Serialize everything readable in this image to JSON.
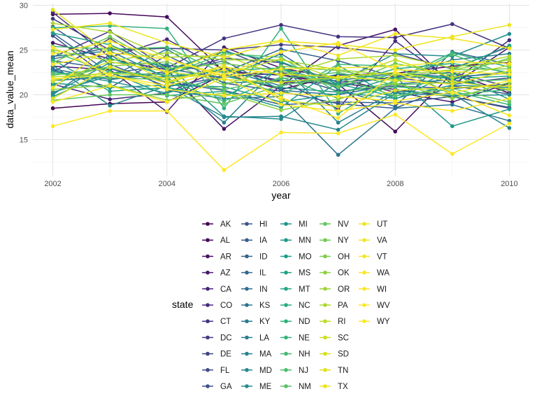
{
  "chart_data": {
    "type": "line",
    "xlabel": "year",
    "ylabel": "data_value_mean",
    "legend_title": "state",
    "legend_position": "bottom",
    "grid": true,
    "x": [
      2002,
      2003,
      2004,
      2005,
      2006,
      2007,
      2008,
      2009,
      2010
    ],
    "xticks": [
      2002,
      2004,
      2006,
      2008,
      2010
    ],
    "yticks": [
      15,
      20,
      25,
      30
    ],
    "xlim": [
      2001.65,
      2010.35
    ],
    "ylim": [
      10.9,
      30.2
    ],
    "series": [
      {
        "name": "AK",
        "color": "#440154",
        "values": [
          18.5,
          19.0,
          19.2,
          22.3,
          20.6,
          22.2,
          22.4,
          23.2,
          23.6
        ]
      },
      {
        "name": "AL",
        "color": "#450a5c",
        "values": [
          29.0,
          29.1,
          28.7,
          22.6,
          22.2,
          21.2,
          15.9,
          22.4,
          20.2
        ]
      },
      {
        "name": "AR",
        "color": "#461365",
        "values": [
          25.8,
          24.0,
          22.8,
          16.2,
          21.0,
          25.5,
          27.3,
          21.1,
          25.3
        ]
      },
      {
        "name": "AZ",
        "color": "#471b6e",
        "values": [
          23.2,
          22.8,
          18.1,
          25.3,
          23.0,
          21.8,
          20.3,
          19.2,
          21.3
        ]
      },
      {
        "name": "CA",
        "color": "#472376",
        "values": [
          21.2,
          19.5,
          20.2,
          23.0,
          21.4,
          21.3,
          20.6,
          19.8,
          18.5
        ]
      },
      {
        "name": "CO",
        "color": "#462b7c",
        "values": [
          29.2,
          24.2,
          26.2,
          22.8,
          21.6,
          18.4,
          26.0,
          21.5,
          26.1
        ]
      },
      {
        "name": "CT",
        "color": "#453281",
        "values": [
          24.2,
          27.1,
          23.0,
          26.3,
          27.8,
          26.5,
          26.4,
          27.9,
          25.2
        ]
      },
      {
        "name": "DC",
        "color": "#433a84",
        "values": [
          28.5,
          25.0,
          25.2,
          25.0,
          25.6,
          25.3,
          24.6,
          22.9,
          25.4
        ]
      },
      {
        "name": "DE",
        "color": "#414286",
        "values": [
          22.5,
          26.3,
          22.3,
          24.1,
          23.6,
          21.4,
          21.9,
          21.2,
          21.9
        ]
      },
      {
        "name": "FL",
        "color": "#3f4988",
        "values": [
          26.6,
          21.8,
          22.6,
          25.0,
          22.5,
          21.0,
          22.1,
          22.5,
          20.9
        ]
      },
      {
        "name": "GA",
        "color": "#3c508b",
        "values": [
          27.6,
          23.4,
          20.9,
          22.0,
          22.4,
          20.4,
          21.0,
          20.7,
          21.2
        ]
      },
      {
        "name": "HI",
        "color": "#39568c",
        "values": [
          22.8,
          20.8,
          24.4,
          21.3,
          20.4,
          19.0,
          18.5,
          21.0,
          20.1
        ]
      },
      {
        "name": "IA",
        "color": "#365d8d",
        "values": [
          23.8,
          22.9,
          21.4,
          20.5,
          18.9,
          19.2,
          19.1,
          19.8,
          18.6
        ]
      },
      {
        "name": "ID",
        "color": "#34638d",
        "values": [
          26.9,
          22.4,
          23.3,
          22.5,
          25.1,
          23.8,
          22.0,
          21.9,
          22.6
        ]
      },
      {
        "name": "IL",
        "color": "#31688e",
        "values": [
          24.0,
          25.3,
          22.9,
          21.9,
          24.6,
          20.6,
          18.7,
          24.8,
          23.4
        ]
      },
      {
        "name": "IN",
        "color": "#2f6e8e",
        "values": [
          22.9,
          21.7,
          22.4,
          23.8,
          20.5,
          20.0,
          21.2,
          21.7,
          20.5
        ]
      },
      {
        "name": "KS",
        "color": "#2c738e",
        "values": [
          20.0,
          24.5,
          20.5,
          19.6,
          19.8,
          13.3,
          18.5,
          18.9,
          17.1
        ]
      },
      {
        "name": "KY",
        "color": "#2a788e",
        "values": [
          21.6,
          22.0,
          25.1,
          21.3,
          21.6,
          21.6,
          22.4,
          22.0,
          22.4
        ]
      },
      {
        "name": "LA",
        "color": "#287d8e",
        "values": [
          24.3,
          24.9,
          21.9,
          22.8,
          21.0,
          22.3,
          21.8,
          23.9,
          24.6
        ]
      },
      {
        "name": "MA",
        "color": "#26828e",
        "values": [
          20.3,
          22.1,
          22.0,
          16.9,
          23.4,
          16.9,
          20.4,
          20.1,
          16.3
        ]
      },
      {
        "name": "MD",
        "color": "#24878e",
        "values": [
          23.3,
          18.8,
          21.0,
          17.5,
          17.6,
          16.1,
          20.2,
          19.9,
          20.0
        ]
      },
      {
        "name": "ME",
        "color": "#228c8d",
        "values": [
          20.1,
          23.6,
          23.4,
          17.6,
          17.3,
          21.4,
          24.6,
          24.3,
          26.8
        ]
      },
      {
        "name": "MI",
        "color": "#20928c",
        "values": [
          22.6,
          21.5,
          20.2,
          22.1,
          20.8,
          20.3,
          19.6,
          21.1,
          20.8
        ]
      },
      {
        "name": "MN",
        "color": "#1f978b",
        "values": [
          21.3,
          20.8,
          21.1,
          20.9,
          19.2,
          20.1,
          22.0,
          16.5,
          18.4
        ]
      },
      {
        "name": "MO",
        "color": "#1f9c89",
        "values": [
          19.8,
          22.6,
          19.9,
          20.4,
          18.6,
          23.3,
          19.5,
          22.4,
          19.5
        ]
      },
      {
        "name": "MS",
        "color": "#21a186",
        "values": [
          26.9,
          25.6,
          22.8,
          24.8,
          23.7,
          21.2,
          19.8,
          22.8,
          25.5
        ]
      },
      {
        "name": "MT",
        "color": "#24a684",
        "values": [
          23.9,
          20.4,
          20.8,
          19.8,
          22.9,
          20.8,
          22.4,
          21.8,
          22.1
        ]
      },
      {
        "name": "NC",
        "color": "#29ab81",
        "values": [
          21.0,
          24.1,
          22.1,
          22.7,
          23.0,
          21.1,
          22.9,
          23.5,
          22.5
        ]
      },
      {
        "name": "ND",
        "color": "#30b07c",
        "values": [
          27.5,
          27.7,
          27.4,
          18.5,
          27.4,
          17.9,
          21.7,
          24.7,
          23.1
        ]
      },
      {
        "name": "NE",
        "color": "#38b478",
        "values": [
          22.2,
          23.0,
          21.6,
          19.3,
          22.0,
          19.6,
          20.9,
          20.4,
          18.9
        ]
      },
      {
        "name": "NH",
        "color": "#42b972",
        "values": [
          25.4,
          25.1,
          25.3,
          22.4,
          20.0,
          23.4,
          23.2,
          20.0,
          20.6
        ]
      },
      {
        "name": "NJ",
        "color": "#4cbe6c",
        "values": [
          24.8,
          22.5,
          22.2,
          24.6,
          24.2,
          20.2,
          21.4,
          24.5,
          22.2
        ]
      },
      {
        "name": "NM",
        "color": "#57c165",
        "values": [
          22.4,
          21.9,
          21.7,
          20.6,
          21.8,
          22.5,
          21.1,
          21.4,
          21.7
        ]
      },
      {
        "name": "NV",
        "color": "#63c65e",
        "values": [
          19.4,
          20.0,
          20.0,
          19.0,
          21.1,
          21.9,
          19.9,
          20.7,
          19.2
        ]
      },
      {
        "name": "NY",
        "color": "#71c955",
        "values": [
          23.6,
          26.5,
          22.9,
          23.5,
          22.7,
          20.9,
          23.5,
          22.2,
          24.1
        ]
      },
      {
        "name": "OH",
        "color": "#7ecd4c",
        "values": [
          21.6,
          23.2,
          23.7,
          21.1,
          23.2,
          22.7,
          21.7,
          22.8,
          22.9
        ]
      },
      {
        "name": "OK",
        "color": "#8ed142",
        "values": [
          20.6,
          21.1,
          19.4,
          20.2,
          18.3,
          19.5,
          21.3,
          19.6,
          21.4
        ]
      },
      {
        "name": "OR",
        "color": "#9dd538",
        "values": [
          25.0,
          23.8,
          24.7,
          23.9,
          23.9,
          22.8,
          22.2,
          22.8,
          23.9
        ]
      },
      {
        "name": "PA",
        "color": "#acd82f",
        "values": [
          28.0,
          27.0,
          24.2,
          24.4,
          22.1,
          24.0,
          24.4,
          23.0,
          24.3
        ]
      },
      {
        "name": "RI",
        "color": "#bcdb27",
        "values": [
          22.0,
          22.4,
          21.9,
          22.3,
          24.0,
          21.7,
          23.9,
          21.9,
          23.3
        ]
      },
      {
        "name": "SC",
        "color": "#cbde21",
        "values": [
          21.5,
          23.7,
          22.6,
          21.7,
          21.4,
          22.0,
          22.5,
          21.5,
          20.6
        ]
      },
      {
        "name": "SD",
        "color": "#d7e01d",
        "values": [
          19.6,
          23.1,
          21.3,
          23.3,
          19.4,
          18.7,
          20.5,
          20.8,
          21.0
        ]
      },
      {
        "name": "TN",
        "color": "#e2e31c",
        "values": [
          29.5,
          24.6,
          21.5,
          23.1,
          22.3,
          22.0,
          21.6,
          21.2,
          22.7
        ]
      },
      {
        "name": "TX",
        "color": "#ece51b",
        "values": [
          27.3,
          28.0,
          25.8,
          24.2,
          26.0,
          25.6,
          25.0,
          26.5,
          27.8
        ]
      },
      {
        "name": "UT",
        "color": "#f0e51d",
        "values": [
          20.8,
          25.5,
          22.4,
          25.0,
          26.1,
          24.4,
          26.8,
          26.3,
          25.2
        ]
      },
      {
        "name": "VA",
        "color": "#f3e621",
        "values": [
          23.4,
          24.7,
          24.0,
          22.0,
          22.9,
          23.0,
          23.2,
          23.7,
          23.5
        ]
      },
      {
        "name": "VT",
        "color": "#f6e724",
        "values": [
          21.8,
          22.2,
          20.6,
          19.9,
          20.2,
          19.8,
          19.3,
          20.3,
          17.7
        ]
      },
      {
        "name": "WA",
        "color": "#f9e725",
        "values": [
          24.6,
          26.0,
          24.0,
          22.2,
          24.8,
          25.8,
          22.8,
          22.6,
          22.3
        ]
      },
      {
        "name": "WI",
        "color": "#fbe724",
        "values": [
          19.2,
          21.0,
          19.2,
          21.9,
          18.9,
          18.2,
          19.1,
          18.2,
          19.6
        ]
      },
      {
        "name": "WV",
        "color": "#fde725",
        "values": [
          16.5,
          18.2,
          18.2,
          11.6,
          15.8,
          15.7,
          17.8,
          13.4,
          16.8
        ]
      },
      {
        "name": "WY",
        "color": "#fde725",
        "values": [
          25.3,
          22.2,
          21.0,
          22.8,
          19.7,
          17.4,
          22.5,
          20.2,
          21.6
        ]
      }
    ]
  }
}
